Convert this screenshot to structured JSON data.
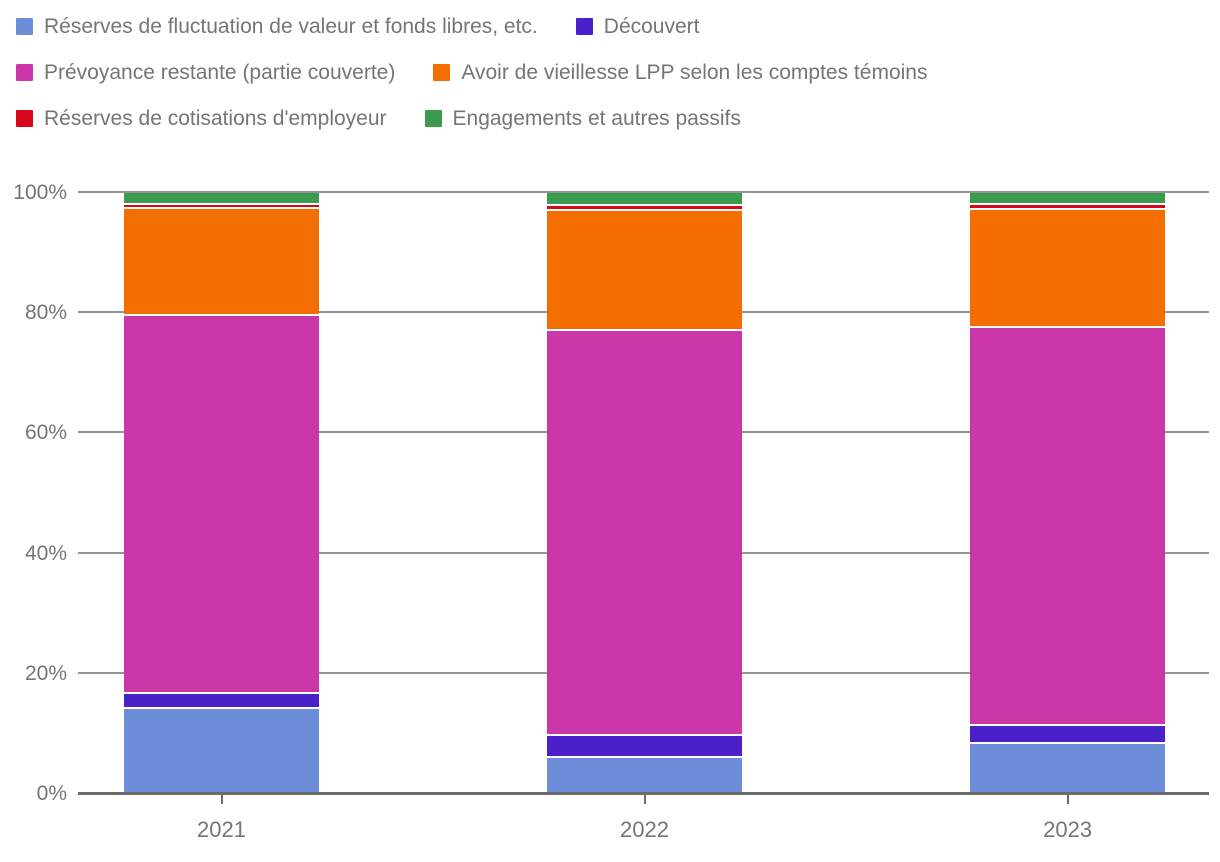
{
  "chart_data": {
    "type": "bar",
    "variant": "stacked-100-percent",
    "title": "",
    "categories": [
      "2021",
      "2022",
      "2023"
    ],
    "series": [
      {
        "name": "Réserves de fluctuation de valeur et fonds libres, etc.",
        "color": "#6d8dd8",
        "values": [
          14.4,
          6.3,
          8.6
        ]
      },
      {
        "name": "Découvert",
        "color": "#4a21c9",
        "values": [
          2.6,
          3.7,
          3.0
        ]
      },
      {
        "name": "Prévoyance restante (partie couverte)",
        "color": "#cb37a9",
        "values": [
          62.8,
          67.3,
          66.3
        ]
      },
      {
        "name": "Avoir de vieillesse LPP selon les comptes témoins",
        "color": "#f36d00",
        "values": [
          17.8,
          20.0,
          19.6
        ]
      },
      {
        "name": "Réserves de cotisations d'employeur",
        "color": "#d6071c",
        "values": [
          0.7,
          0.8,
          0.8
        ]
      },
      {
        "name": "Engagements et autres passifs",
        "color": "#3a9b4e",
        "values": [
          1.7,
          1.9,
          1.7
        ]
      }
    ],
    "stack_order": "series listed bottom to top",
    "ylim": [
      0,
      100
    ],
    "y_ticks": [
      0,
      20,
      40,
      60,
      80,
      100
    ],
    "y_tick_labels": [
      "0%",
      "20%",
      "40%",
      "60%",
      "80%",
      "100%"
    ],
    "grid": "horizontal",
    "legend_position": "top-left"
  },
  "theme": {
    "background": "#ffffff",
    "label_color": "#757575",
    "grid_color": "#949494",
    "axis_color": "#6b6b6b",
    "segment_gap_color": "#ffffff"
  }
}
